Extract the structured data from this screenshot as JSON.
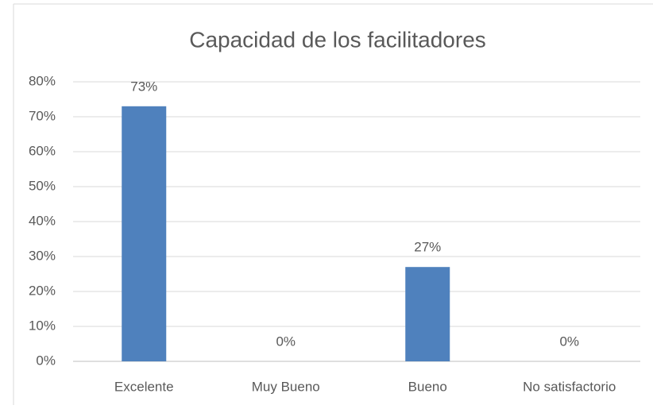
{
  "chart_data": {
    "type": "bar",
    "title": "Capacidad de los facilitadores",
    "categories": [
      "Excelente",
      "Muy Bueno",
      "Bueno",
      "No satisfactorio"
    ],
    "values": [
      73,
      0,
      27,
      0
    ],
    "value_labels": [
      "73%",
      "0%",
      "27%",
      "0%"
    ],
    "color": "#4f81bd",
    "ylim": [
      0,
      80
    ],
    "yticks": [
      {
        "value": 0,
        "label": "0%"
      },
      {
        "value": 10,
        "label": "10%"
      },
      {
        "value": 20,
        "label": "20%"
      },
      {
        "value": 30,
        "label": "30%"
      },
      {
        "value": 40,
        "label": "40%"
      },
      {
        "value": 50,
        "label": "50%"
      },
      {
        "value": 60,
        "label": "60%"
      },
      {
        "value": 70,
        "label": "70%"
      },
      {
        "value": 80,
        "label": "80%"
      }
    ],
    "grid": true
  }
}
